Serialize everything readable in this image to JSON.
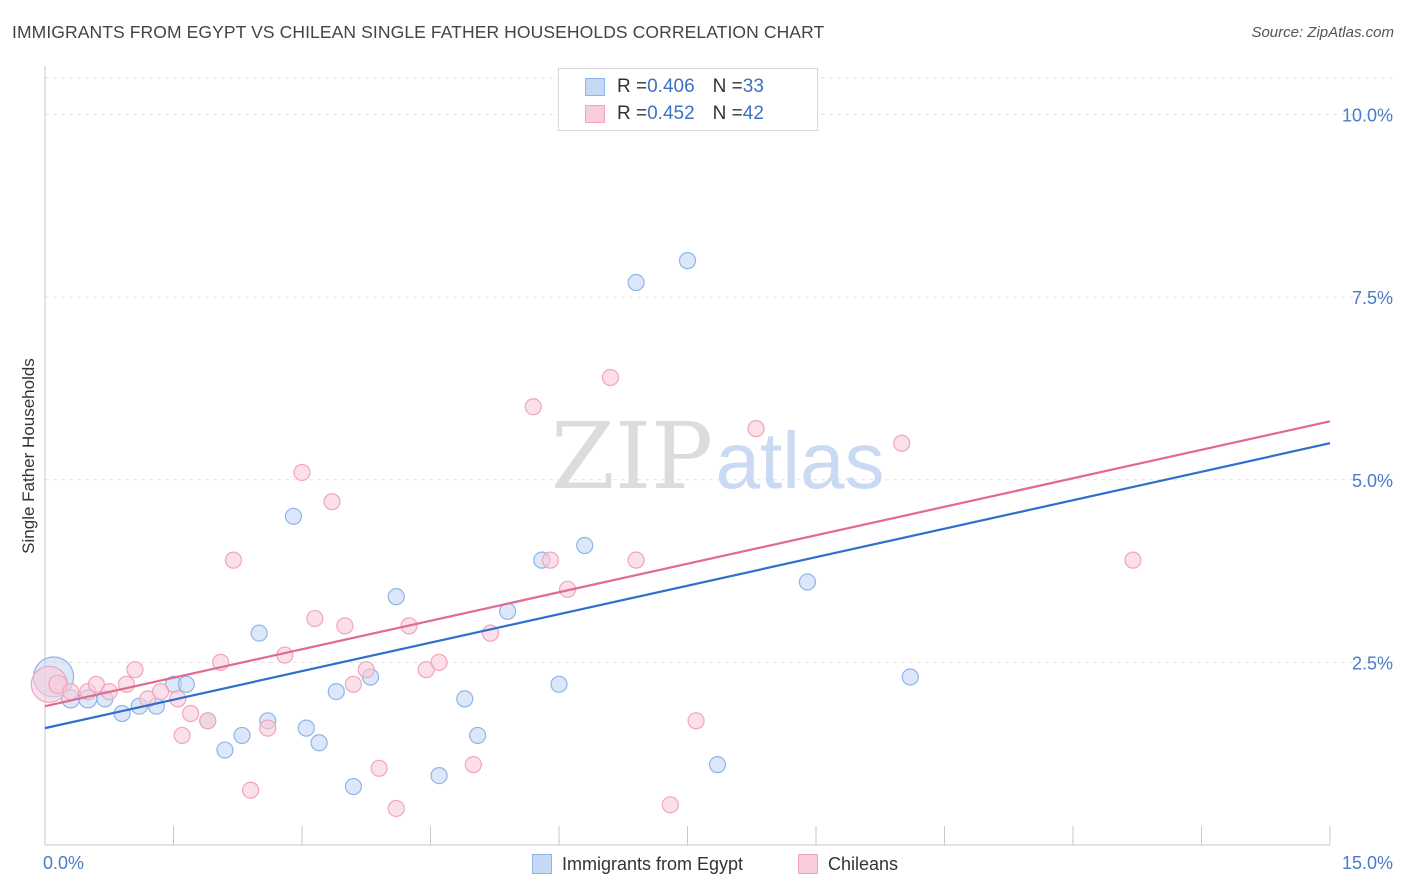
{
  "title": "IMMIGRANTS FROM EGYPT VS CHILEAN SINGLE FATHER HOUSEHOLDS CORRELATION CHART",
  "source": "Source: ZipAtlas.com",
  "watermark": {
    "part1": "ZIP",
    "part2": "atlas"
  },
  "legend_top": [
    {
      "r_label": "R = ",
      "r_value": "0.406",
      "n_label": "N = ",
      "n_value": "33"
    },
    {
      "r_label": "R = ",
      "r_value": "0.452",
      "n_label": "N = ",
      "n_value": "42"
    }
  ],
  "chart_data": {
    "type": "scatter",
    "title": "IMMIGRANTS FROM EGYPT VS CHILEAN SINGLE FATHER HOUSEHOLDS CORRELATION CHART",
    "xlabel": "",
    "ylabel": "Single Father Households",
    "xlim": [
      0,
      15
    ],
    "ylim": [
      0,
      10.5
    ],
    "x_tick_labels": [
      "0.0%",
      "15.0%"
    ],
    "y_ticks": [
      2.5,
      5.0,
      7.5,
      10.0
    ],
    "y_tick_labels": [
      "2.5%",
      "5.0%",
      "7.5%",
      "10.0%"
    ],
    "grid": true,
    "legend_placement": "bottom",
    "series": [
      {
        "name": "Immigrants from Egypt",
        "color": "#8fb4e8",
        "fill": "#c5d9f5",
        "line_color": "#2f6fcc",
        "r": 0.406,
        "n": 33,
        "trend": [
          [
            0,
            1.6
          ],
          [
            15,
            5.5
          ]
        ],
        "points": [
          [
            0.1,
            2.3,
            20
          ],
          [
            0.3,
            2.0,
            9
          ],
          [
            0.5,
            2.0,
            9
          ],
          [
            0.7,
            2.0,
            8
          ],
          [
            0.9,
            1.8,
            8
          ],
          [
            1.1,
            1.9,
            8
          ],
          [
            1.3,
            1.9,
            8
          ],
          [
            1.5,
            2.2,
            8
          ],
          [
            1.65,
            2.2,
            8
          ],
          [
            1.9,
            1.7,
            8
          ],
          [
            2.1,
            1.3,
            8
          ],
          [
            2.3,
            1.5,
            8
          ],
          [
            2.5,
            2.9,
            8
          ],
          [
            2.6,
            1.7,
            8
          ],
          [
            2.9,
            4.5,
            8
          ],
          [
            3.05,
            1.6,
            8
          ],
          [
            3.2,
            1.4,
            8
          ],
          [
            3.4,
            2.1,
            8
          ],
          [
            3.6,
            0.8,
            8
          ],
          [
            3.8,
            2.3,
            8
          ],
          [
            4.1,
            3.4,
            8
          ],
          [
            4.6,
            0.95,
            8
          ],
          [
            4.9,
            2.0,
            8
          ],
          [
            5.05,
            1.5,
            8
          ],
          [
            5.4,
            3.2,
            8
          ],
          [
            5.8,
            3.9,
            8
          ],
          [
            6.0,
            2.2,
            8
          ],
          [
            6.3,
            4.1,
            8
          ],
          [
            6.9,
            7.7,
            8
          ],
          [
            7.5,
            8.0,
            8
          ],
          [
            7.85,
            1.1,
            8
          ],
          [
            8.9,
            3.6,
            8
          ],
          [
            10.1,
            2.3,
            8
          ]
        ]
      },
      {
        "name": "Chileans",
        "color": "#f0a5bd",
        "fill": "#f8ccda",
        "line_color": "#e06a92",
        "r": 0.452,
        "n": 42,
        "trend": [
          [
            0,
            1.9
          ],
          [
            15,
            5.8
          ]
        ],
        "points": [
          [
            0.05,
            2.2,
            18
          ],
          [
            0.15,
            2.2,
            9
          ],
          [
            0.3,
            2.1,
            8
          ],
          [
            0.5,
            2.1,
            8
          ],
          [
            0.6,
            2.2,
            8
          ],
          [
            0.75,
            2.1,
            8
          ],
          [
            0.95,
            2.2,
            8
          ],
          [
            1.05,
            2.4,
            8
          ],
          [
            1.2,
            2.0,
            8
          ],
          [
            1.35,
            2.1,
            8
          ],
          [
            1.55,
            2.0,
            8
          ],
          [
            1.6,
            1.5,
            8
          ],
          [
            1.7,
            1.8,
            8
          ],
          [
            1.9,
            1.7,
            8
          ],
          [
            2.05,
            2.5,
            8
          ],
          [
            2.2,
            3.9,
            8
          ],
          [
            2.4,
            0.75,
            8
          ],
          [
            2.6,
            1.6,
            8
          ],
          [
            2.8,
            2.6,
            8
          ],
          [
            3.0,
            5.1,
            8
          ],
          [
            3.15,
            3.1,
            8
          ],
          [
            3.35,
            4.7,
            8
          ],
          [
            3.5,
            3.0,
            8
          ],
          [
            3.6,
            2.2,
            8
          ],
          [
            3.75,
            2.4,
            8
          ],
          [
            3.9,
            1.05,
            8
          ],
          [
            4.1,
            0.5,
            8
          ],
          [
            4.25,
            3.0,
            8
          ],
          [
            4.45,
            2.4,
            8
          ],
          [
            4.6,
            2.5,
            8
          ],
          [
            5.0,
            1.1,
            8
          ],
          [
            5.2,
            2.9,
            8
          ],
          [
            5.7,
            6.0,
            8
          ],
          [
            5.9,
            3.9,
            8
          ],
          [
            6.1,
            3.5,
            8
          ],
          [
            6.6,
            6.4,
            8
          ],
          [
            6.9,
            3.9,
            8
          ],
          [
            7.3,
            0.55,
            8
          ],
          [
            7.6,
            1.7,
            8
          ],
          [
            8.3,
            5.7,
            8
          ],
          [
            10.0,
            5.5,
            8
          ],
          [
            12.7,
            3.9,
            8
          ]
        ]
      }
    ]
  }
}
